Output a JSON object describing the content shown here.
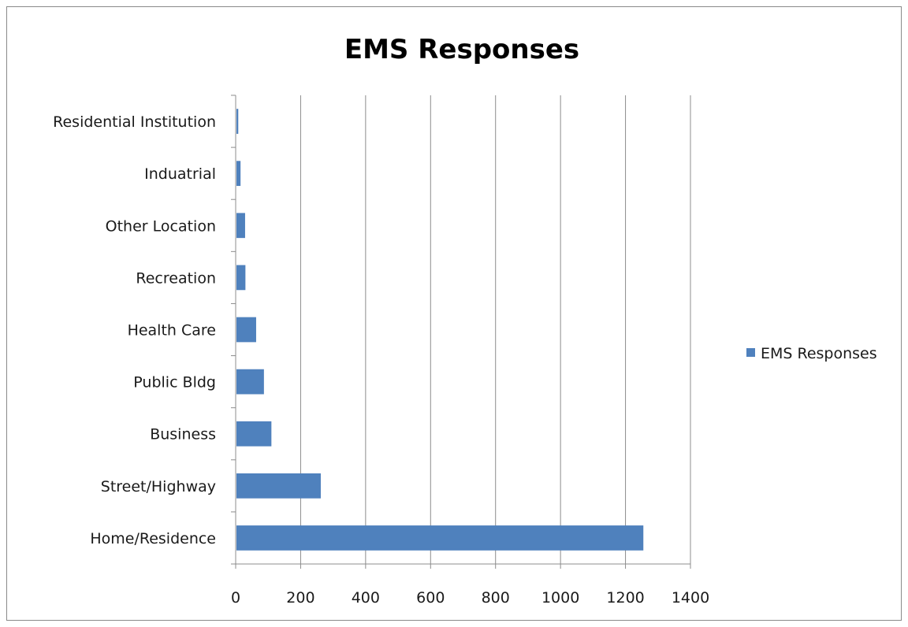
{
  "chart_data": {
    "type": "bar",
    "orientation": "horizontal",
    "title": "EMS Responses",
    "xlabel": "",
    "ylabel": "",
    "categories": [
      "Home/Residence",
      "Street/Highway",
      "Business",
      "Public Bldg",
      "Health Care",
      "Recreation",
      "Other Location",
      "Induatrial",
      "Residential Institution"
    ],
    "series": [
      {
        "name": "EMS Responses",
        "values": [
          1255,
          262,
          110,
          87,
          63,
          30,
          29,
          15,
          8
        ],
        "color": "#4f81bd"
      }
    ],
    "xlim": [
      0,
      1400
    ],
    "xticks": [
      0,
      200,
      400,
      600,
      800,
      1000,
      1200,
      1400
    ],
    "grid": "vertical major gridlines",
    "legend": "right"
  }
}
